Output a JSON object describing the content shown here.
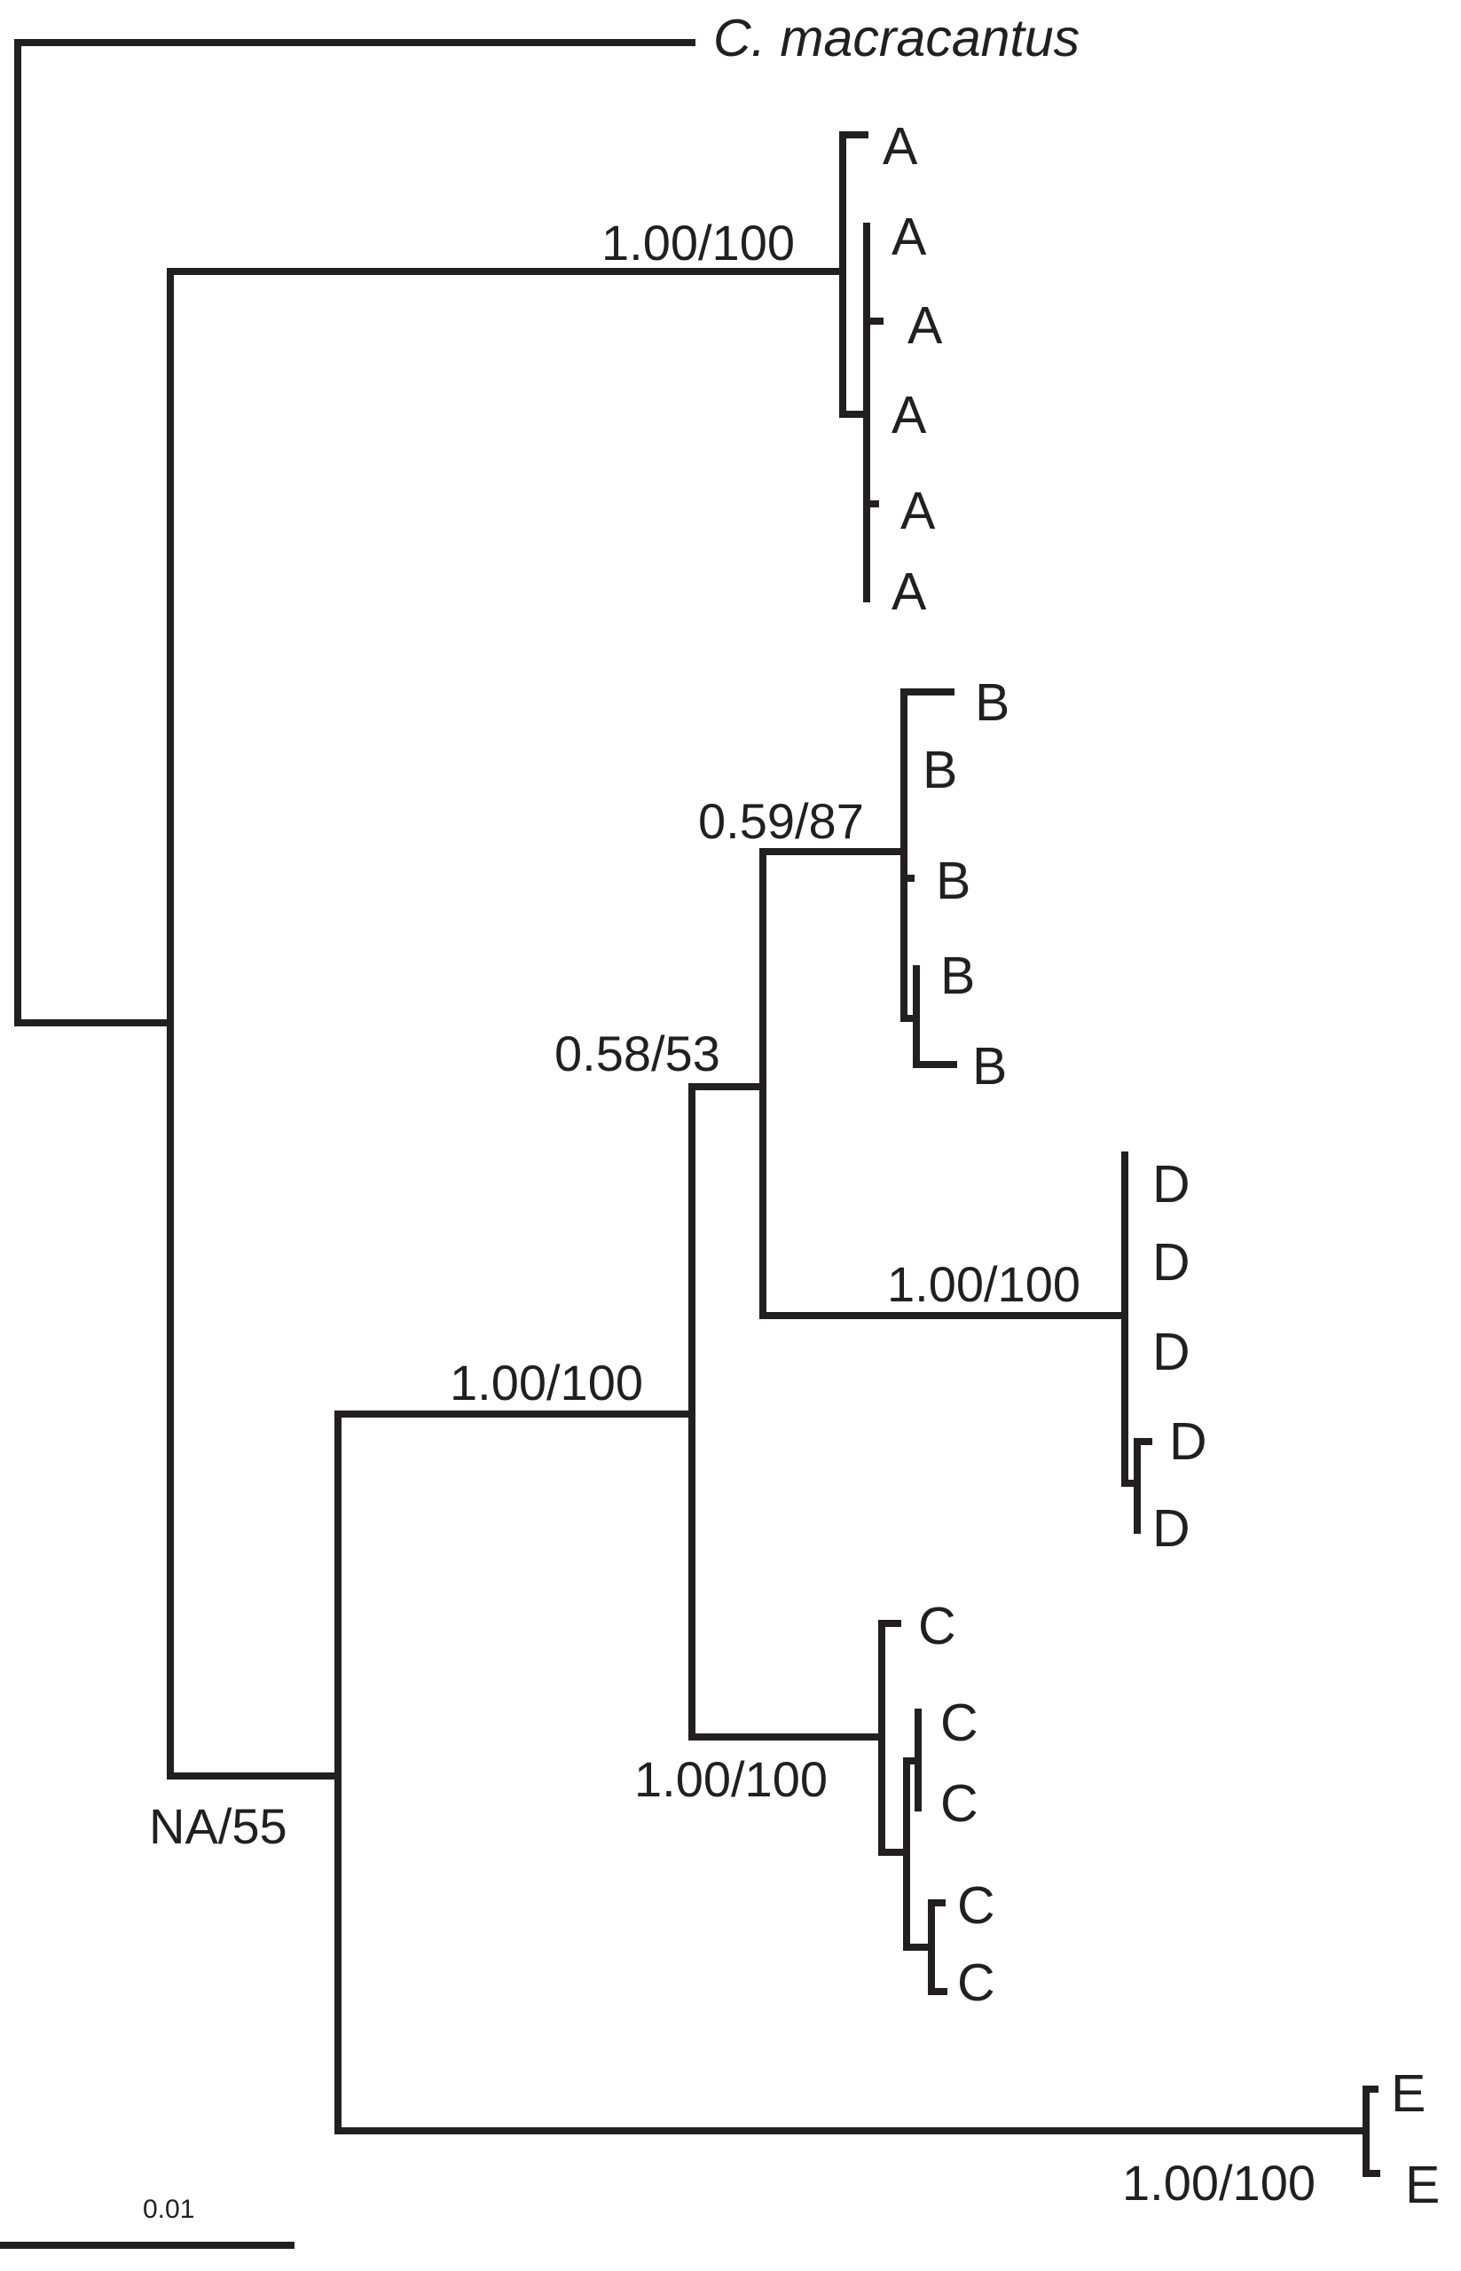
{
  "figure": {
    "outgroup_label": "C. macracantus",
    "scale_bar_label": "0.01"
  },
  "clades": [
    {
      "name": "A",
      "support": "1.00/100",
      "tips": [
        "A",
        "A",
        "A",
        "A",
        "A",
        "A"
      ]
    },
    {
      "name": "B",
      "support": "0.59/87",
      "tips": [
        "B",
        "B",
        "B",
        "B",
        "B"
      ]
    },
    {
      "name": "D",
      "support": "1.00/100",
      "tips": [
        "D",
        "D",
        "D",
        "D",
        "D"
      ]
    },
    {
      "name": "C",
      "support": "1.00/100",
      "tips": [
        "C",
        "C",
        "C",
        "C",
        "C"
      ]
    },
    {
      "name": "E",
      "support": "1.00/100",
      "tips": [
        "E",
        "E"
      ]
    }
  ],
  "internal_supports": {
    "bd_node": "0.58/53",
    "bdc_node": "1.00/100",
    "bdce_node": "NA/55"
  },
  "colors": {
    "ink": "#231f20",
    "background": "#ffffff"
  }
}
